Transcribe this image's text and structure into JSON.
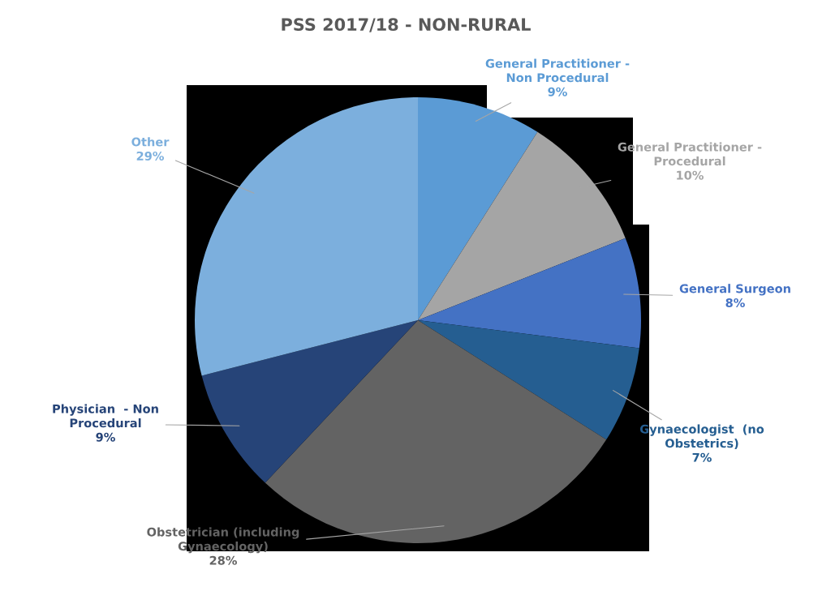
{
  "chart_data": {
    "type": "pie",
    "title": "PSS 2017/18 - NON-RURAL",
    "categories": [
      "General Practitioner -\nNon Procedural",
      "General Practitioner -\nProcedural",
      "General Surgeon",
      "Gynaecologist  (no\nObstetrics)",
      "Obstetrician (including\nGynaecology)",
      "Physician  - Non\nProcedural",
      "Other"
    ],
    "values": [
      9,
      10,
      8,
      7,
      28,
      9,
      29
    ],
    "value_labels": [
      "9%",
      "10%",
      "8%",
      "7%",
      "28%",
      "9%",
      "29%"
    ],
    "colors": [
      "#5b9bd5",
      "#a5a5a5",
      "#4472c4",
      "#255e91",
      "#636363",
      "#264478",
      "#7cafdd"
    ],
    "legend": false
  }
}
